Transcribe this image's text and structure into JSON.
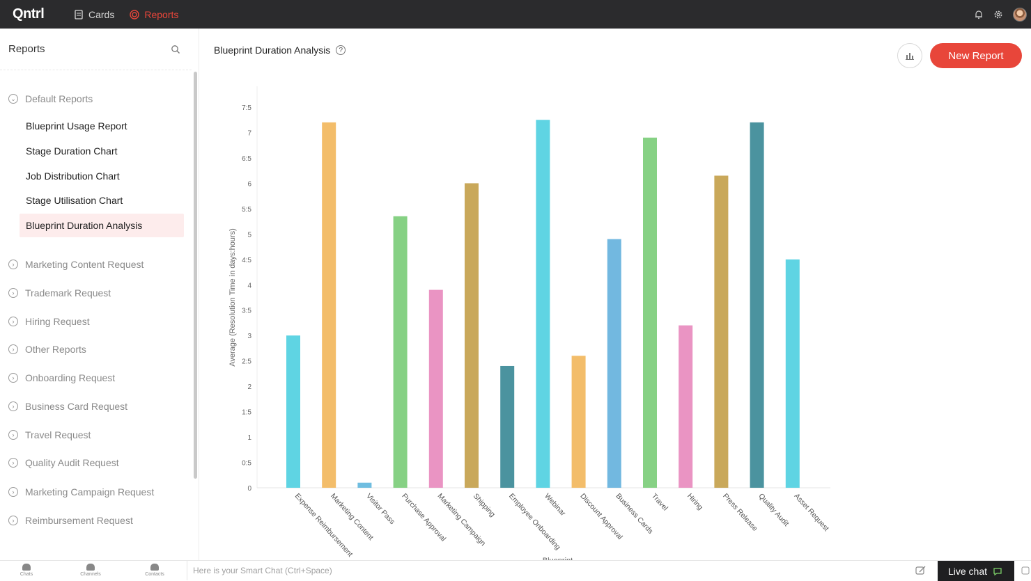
{
  "app": {
    "logo": "Qntrl"
  },
  "nav": {
    "cards_label": "Cards",
    "reports_label": "Reports"
  },
  "topbar": {
    "icons": [
      "bell-icon",
      "gear-icon",
      "avatar"
    ]
  },
  "sidebar": {
    "title": "Reports",
    "default_group": "Default Reports",
    "default_items": [
      "Blueprint Usage Report",
      "Stage Duration Chart",
      "Job Distribution Chart",
      "Stage Utilisation Chart",
      "Blueprint Duration Analysis"
    ],
    "active_item": "Blueprint Duration Analysis",
    "groups": [
      "Marketing Content Request",
      "Trademark Request",
      "Hiring Request",
      "Other Reports",
      "Onboarding Request",
      "Business Card Request",
      "Travel Request",
      "Quality Audit Request",
      "Marketing Campaign Request",
      "Reimbursement Request"
    ]
  },
  "main": {
    "title": "Blueprint Duration Analysis",
    "new_report_label": "New Report"
  },
  "chart_data": {
    "type": "bar",
    "ylabel": "Average (Resolution Time in days:hours)",
    "xlabel": "Blueprint",
    "ylim": [
      0,
      7.5
    ],
    "yticks": [
      "0",
      "0:5",
      "1",
      "1:5",
      "2",
      "2:5",
      "3",
      "3:5",
      "4",
      "4:5",
      "5",
      "5:5",
      "6",
      "6:5",
      "7",
      "7:5"
    ],
    "categories": [
      "Expense Reimbursement",
      "Marketing Content",
      "Visitor Pass",
      "Purchase Approval",
      "Marketing Campaign",
      "Shipping",
      "Employee Onboarding",
      "Webinar",
      "Discount Approval",
      "Business Cards",
      "Travel",
      "Hiring",
      "Press Release",
      "Quality Audit",
      "Asset Request"
    ],
    "values": [
      3.0,
      7.2,
      0.1,
      5.35,
      3.9,
      6.0,
      2.4,
      7.25,
      2.6,
      4.9,
      6.9,
      3.2,
      6.15,
      7.2,
      4.5
    ],
    "colors": [
      "#5fd4e3",
      "#f3bd6a",
      "#6fbde0",
      "#86d184",
      "#ea94c3",
      "#c9a85a",
      "#4b939f",
      "#5fd4e3",
      "#f3bd6a",
      "#72b8e0",
      "#86d184",
      "#ea94c3",
      "#c9a85a",
      "#4b939f",
      "#5fd4e3"
    ],
    "grid": false,
    "legend": "none"
  },
  "bottombar": {
    "chats": "Chats",
    "channels": "Channels",
    "contacts": "Contacts",
    "smartchat_placeholder": "Here is your Smart Chat (Ctrl+Space)",
    "livechat": "Live chat"
  }
}
